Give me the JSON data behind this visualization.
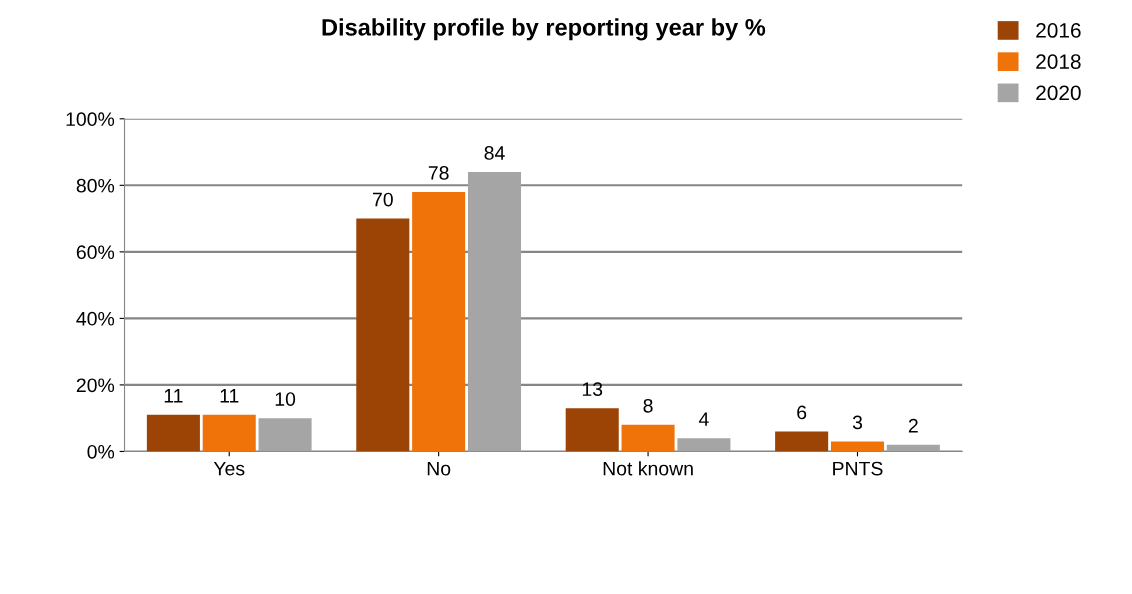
{
  "chart_data": {
    "type": "bar",
    "title": "Disability profile by reporting year by %",
    "categories": [
      "Yes",
      "No",
      "Not known",
      "PNTS"
    ],
    "series": [
      {
        "name": "2016",
        "color": "#9c4306",
        "values": [
          11,
          70,
          13,
          6
        ]
      },
      {
        "name": "2018",
        "color": "#f07309",
        "values": [
          11,
          78,
          8,
          3
        ]
      },
      {
        "name": "2020",
        "color": "#a5a5a5",
        "values": [
          10,
          84,
          4,
          2
        ]
      }
    ],
    "ylim": [
      0,
      100
    ],
    "yticks": [
      {
        "value": 0,
        "label": "0%"
      },
      {
        "value": 20,
        "label": "20%"
      },
      {
        "value": 40,
        "label": "40%"
      },
      {
        "value": 60,
        "label": "60%"
      },
      {
        "value": 80,
        "label": "80%"
      },
      {
        "value": 100,
        "label": "100%"
      }
    ],
    "grid": "y",
    "legend": "top right",
    "data_labels": true
  }
}
